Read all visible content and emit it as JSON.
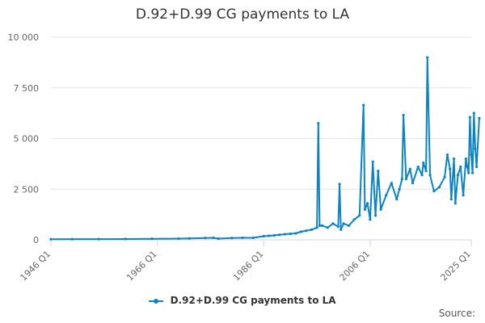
{
  "chart_data": {
    "type": "line",
    "title": "D.92+D.99 CG payments to LA",
    "x_ticks": [
      "1946 Q1",
      "1966 Q1",
      "1986 Q1",
      "2006 Q1",
      "2025 Q1"
    ],
    "y_ticks": [
      "0",
      "2 500",
      "5 000",
      "7 500",
      "10 000"
    ],
    "ylim": [
      0,
      10000
    ],
    "xlim": [
      1946,
      2025
    ],
    "grid": "horizontal",
    "legend_position": "bottom",
    "source_label": "Source:",
    "colors": {
      "series": "#0b84c6",
      "grid": "#e6e6e6",
      "axis": "#ccd6eb"
    },
    "series": [
      {
        "name": "D.92+D.99 CG payments to LA",
        "points": [
          [
            1946.0,
            30
          ],
          [
            1950.0,
            35
          ],
          [
            1955.0,
            35
          ],
          [
            1960.0,
            40
          ],
          [
            1965.0,
            50
          ],
          [
            1970.0,
            60
          ],
          [
            1972.0,
            70
          ],
          [
            1975.0,
            90
          ],
          [
            1976.5,
            100
          ],
          [
            1977.5,
            60
          ],
          [
            1980.0,
            90
          ],
          [
            1982.0,
            100
          ],
          [
            1984.0,
            100
          ],
          [
            1986.0,
            180
          ],
          [
            1987.0,
            200
          ],
          [
            1988.0,
            220
          ],
          [
            1989.0,
            250
          ],
          [
            1990.0,
            280
          ],
          [
            1991.0,
            300
          ],
          [
            1992.0,
            320
          ],
          [
            1993.0,
            400
          ],
          [
            1994.0,
            450
          ],
          [
            1995.0,
            500
          ],
          [
            1996.0,
            600
          ],
          [
            1996.25,
            5750
          ],
          [
            1996.5,
            700
          ],
          [
            1997.0,
            700
          ],
          [
            1998.0,
            600
          ],
          [
            1999.0,
            800
          ],
          [
            2000.0,
            650
          ],
          [
            2000.25,
            2750
          ],
          [
            2000.5,
            500
          ],
          [
            2001.0,
            800
          ],
          [
            2002.0,
            700
          ],
          [
            2003.0,
            1000
          ],
          [
            2004.0,
            1200
          ],
          [
            2004.75,
            6650
          ],
          [
            2005.0,
            1500
          ],
          [
            2005.5,
            1800
          ],
          [
            2006.0,
            1000
          ],
          [
            2006.5,
            3850
          ],
          [
            2007.0,
            1200
          ],
          [
            2007.5,
            3400
          ],
          [
            2008.0,
            1500
          ],
          [
            2009.0,
            2200
          ],
          [
            2010.0,
            2800
          ],
          [
            2011.0,
            2000
          ],
          [
            2011.5,
            2500
          ],
          [
            2012.0,
            3000
          ],
          [
            2012.25,
            6150
          ],
          [
            2012.75,
            3000
          ],
          [
            2013.5,
            3500
          ],
          [
            2014.0,
            2800
          ],
          [
            2015.0,
            3600
          ],
          [
            2015.75,
            3200
          ],
          [
            2016.0,
            3800
          ],
          [
            2016.5,
            3400
          ],
          [
            2016.75,
            9000
          ],
          [
            2017.25,
            3200
          ],
          [
            2018.0,
            2400
          ],
          [
            2019.0,
            2600
          ],
          [
            2020.0,
            3100
          ],
          [
            2020.5,
            4200
          ],
          [
            2021.0,
            3500
          ],
          [
            2021.25,
            2000
          ],
          [
            2021.75,
            4000
          ],
          [
            2022.0,
            1800
          ],
          [
            2022.5,
            3200
          ],
          [
            2023.0,
            3600
          ],
          [
            2023.5,
            2200
          ],
          [
            2024.0,
            4000
          ],
          [
            2024.25,
            3600
          ],
          [
            2024.5,
            3300
          ],
          [
            2024.75,
            6050
          ],
          [
            2025.0,
            4200
          ],
          [
            2025.25,
            3300
          ],
          [
            2025.5,
            6250
          ],
          [
            2025.75,
            4500
          ],
          [
            2026.0,
            3600
          ],
          [
            2026.5,
            6000
          ]
        ]
      }
    ]
  }
}
